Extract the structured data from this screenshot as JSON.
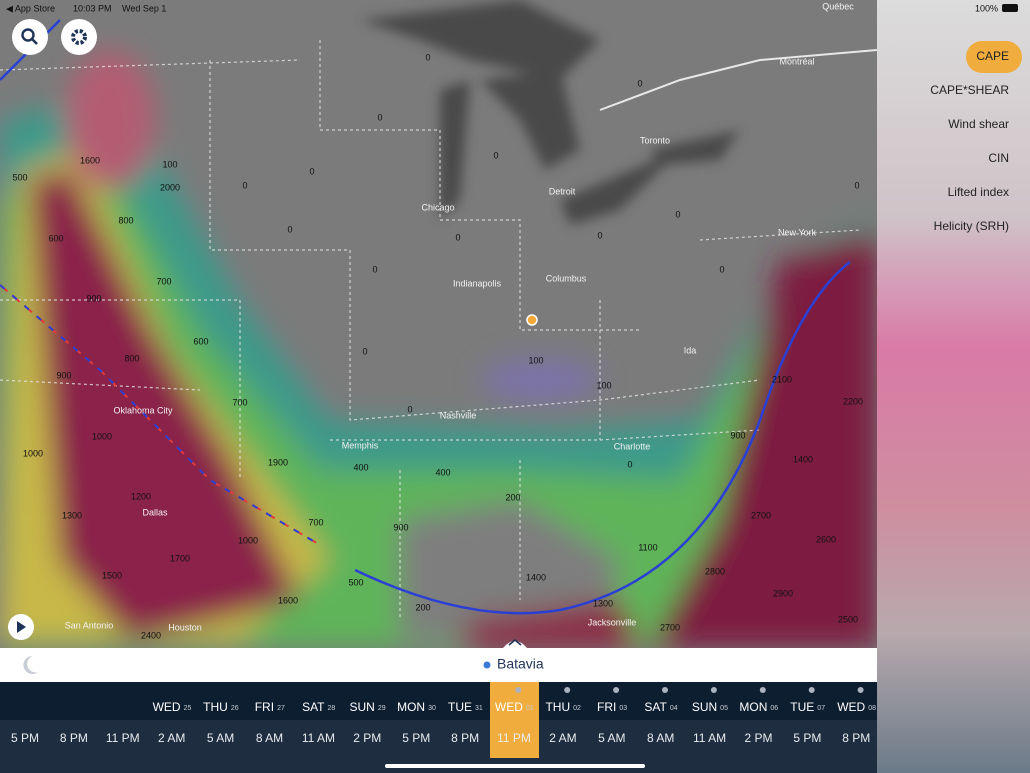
{
  "status_bar": {
    "back": "◀ App Store",
    "time": "10:03 PM",
    "date": "Wed Sep 1",
    "battery": "100%"
  },
  "cities": [
    "Québec",
    "Montréal",
    "Toronto",
    "Detroit",
    "Chicago",
    "Indianapolis",
    "Columbus",
    "Nashville",
    "Memphis",
    "Charlotte",
    "Oklahoma City",
    "Dallas",
    "San Antonio",
    "Houston",
    "Jacksonville",
    "New York",
    "Ida"
  ],
  "map_values": [
    "1600",
    "500",
    "800",
    "600",
    "700",
    "900",
    "600",
    "800",
    "900",
    "700",
    "1000",
    "1000",
    "1900",
    "1200",
    "1300",
    "700",
    "900",
    "1000",
    "1700",
    "1500",
    "1600",
    "500",
    "200",
    "2400",
    "1400",
    "1300",
    "200",
    "400",
    "400",
    "100",
    "100",
    "900",
    "1100",
    "2100",
    "2200",
    "2700",
    "2800",
    "2900",
    "2600",
    "2500",
    "1400",
    "2700",
    "100",
    "2000",
    "0",
    "0",
    "0",
    "0",
    "0",
    "0",
    "0",
    "0",
    "0",
    "0",
    "0",
    "0",
    "0",
    "0",
    "0",
    "0"
  ],
  "layers": [
    "CAPE",
    "CAPE*SHEAR",
    "Wind shear",
    "CIN",
    "Lifted index",
    "Helicity (SRH)"
  ],
  "selected_layer": "CAPE",
  "location": "Batavia",
  "days": [
    {
      "name": "WED",
      "date": "25"
    },
    {
      "name": "THU",
      "date": "26"
    },
    {
      "name": "FRI",
      "date": "27"
    },
    {
      "name": "SAT",
      "date": "28"
    },
    {
      "name": "SUN",
      "date": "29"
    },
    {
      "name": "MON",
      "date": "30"
    },
    {
      "name": "TUE",
      "date": "31"
    },
    {
      "name": "WED",
      "date": "01"
    },
    {
      "name": "THU",
      "date": "02"
    },
    {
      "name": "FRI",
      "date": "03"
    },
    {
      "name": "SAT",
      "date": "04"
    },
    {
      "name": "SUN",
      "date": "05"
    },
    {
      "name": "MON",
      "date": "06"
    },
    {
      "name": "TUE",
      "date": "07"
    },
    {
      "name": "WED",
      "date": "08"
    }
  ],
  "hours": [
    "5 PM",
    "8 PM",
    "11 PM",
    "2 AM",
    "5 AM",
    "8 AM",
    "11 AM",
    "2 PM",
    "5 PM",
    "8 PM",
    "11 PM",
    "2 AM",
    "5 AM",
    "8 AM",
    "11 AM",
    "2 PM",
    "5 PM",
    "8 PM"
  ]
}
